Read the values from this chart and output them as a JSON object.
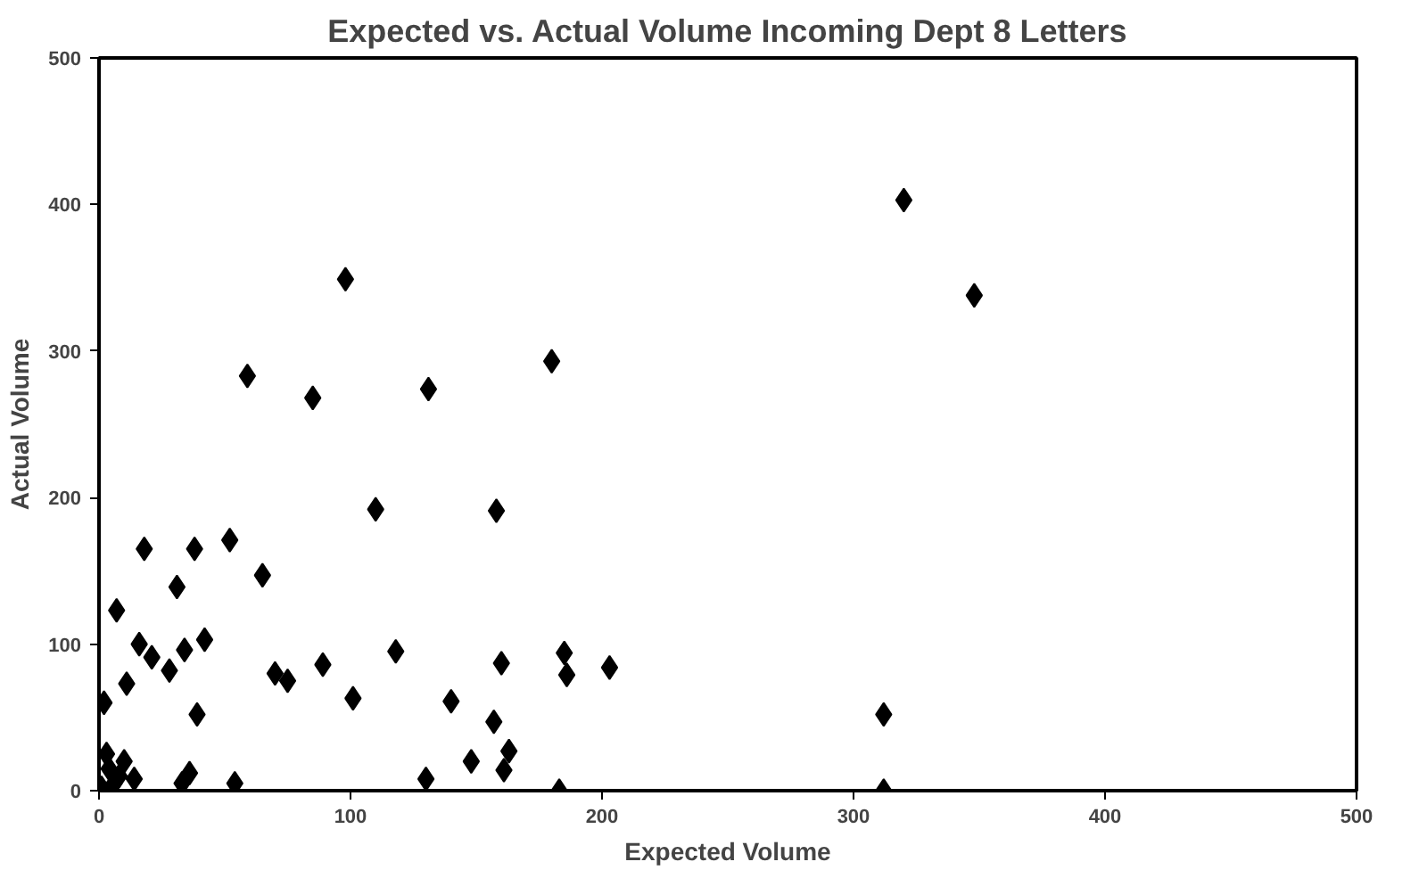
{
  "chart_data": {
    "type": "scatter",
    "title": "Expected vs. Actual Volume Incoming Dept 8 Letters",
    "xlabel": "Expected Volume",
    "ylabel": "Actual Volume",
    "x": [
      2,
      7,
      11,
      18,
      16,
      21,
      28,
      31,
      34,
      38,
      42,
      39,
      52,
      59,
      65,
      70,
      75,
      85,
      89,
      98,
      101,
      110,
      118,
      131,
      130,
      180,
      158,
      160,
      185,
      186,
      203,
      140,
      157,
      148,
      163,
      161,
      183,
      312,
      312,
      320,
      348,
      1,
      4,
      6,
      3,
      8,
      10,
      14,
      33,
      36,
      54
    ],
    "values": [
      60,
      123,
      73,
      165,
      100,
      91,
      82,
      139,
      96,
      165,
      103,
      52,
      171,
      283,
      147,
      80,
      75,
      268,
      86,
      349,
      63,
      192,
      95,
      274,
      8,
      293,
      191,
      87,
      94,
      79,
      84,
      61,
      47,
      20,
      27,
      14,
      0,
      52,
      0,
      403,
      338,
      2,
      15,
      5,
      25,
      10,
      20,
      8,
      5,
      12,
      5
    ],
    "color": "#000000",
    "marker": "diamond",
    "xlim": [
      0,
      500
    ],
    "ylim": [
      0,
      500
    ],
    "xticks": [
      0,
      100,
      200,
      300,
      400,
      500
    ],
    "yticks": [
      0,
      100,
      200,
      300,
      400,
      500
    ],
    "grid": false
  }
}
